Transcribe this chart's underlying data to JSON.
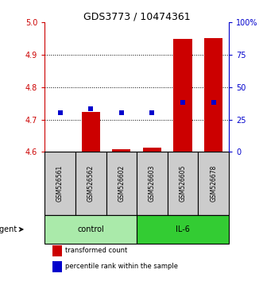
{
  "title": "GDS3773 / 10474361",
  "samples": [
    "GSM526561",
    "GSM526562",
    "GSM526602",
    "GSM526603",
    "GSM526605",
    "GSM526678"
  ],
  "groups": [
    {
      "label": "control",
      "indices": [
        0,
        1,
        2
      ],
      "color": "#99ee99"
    },
    {
      "label": "IL-6",
      "indices": [
        3,
        4,
        5
      ],
      "color": "#33dd33"
    }
  ],
  "transformed_counts": [
    4.601,
    4.724,
    4.608,
    4.614,
    4.948,
    4.951
  ],
  "percentile_ranks": [
    30,
    33,
    30,
    30,
    38,
    38
  ],
  "ylim_left": [
    4.6,
    5.0
  ],
  "ylim_right": [
    0,
    100
  ],
  "yticks_left": [
    4.6,
    4.7,
    4.8,
    4.9,
    5.0
  ],
  "yticks_right": [
    0,
    25,
    50,
    75,
    100
  ],
  "ytick_labels_right": [
    "0",
    "25",
    "50",
    "75",
    "100%"
  ],
  "grid_values": [
    4.7,
    4.8,
    4.9
  ],
  "bar_color": "#cc0000",
  "marker_color": "#0000cc",
  "bar_width": 0.6,
  "legend_items": [
    {
      "label": "transformed count",
      "color": "#cc0000"
    },
    {
      "label": "percentile rank within the sample",
      "color": "#0000cc"
    }
  ],
  "sample_box_color": "#cccccc",
  "sample_box_edge": "#000000",
  "ctrl_color": "#aaeaaa",
  "il6_color": "#33cc33"
}
